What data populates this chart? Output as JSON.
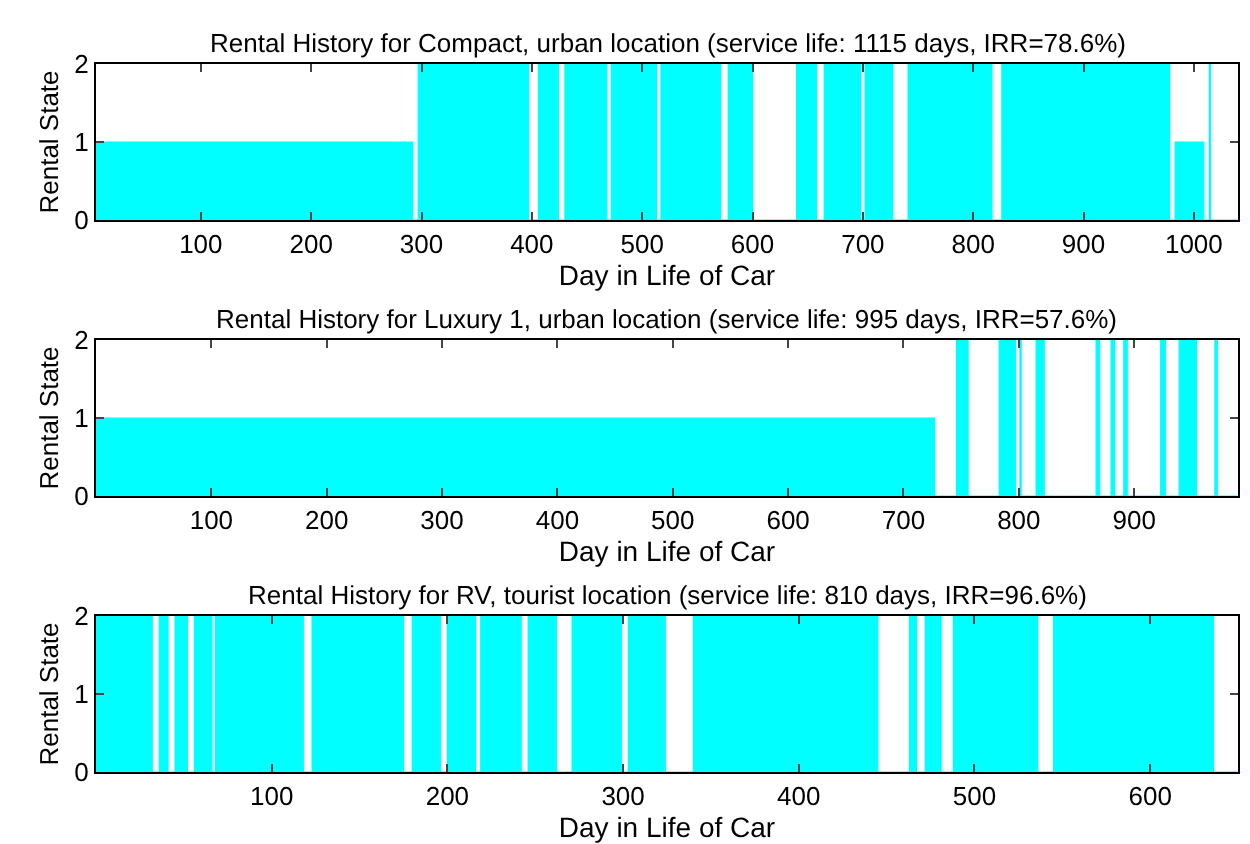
{
  "chart_data": [
    {
      "type": "area",
      "title": "Rental History for Compact, urban location (service life: 1115 days, IRR=78.6%)",
      "xlabel": "Day in Life of Car",
      "ylabel": "Rental State",
      "xlim": [
        5,
        1040
      ],
      "xticks": [
        100,
        200,
        300,
        400,
        500,
        600,
        700,
        800,
        900,
        1000
      ],
      "ylim": [
        0,
        2
      ],
      "yticks": [
        0,
        1,
        2
      ],
      "series": [
        {
          "color": "#00ffff",
          "x": [
            5,
            292,
            292,
            297,
            297,
            397,
            397,
            406,
            406,
            424,
            424,
            430,
            430,
            468,
            468,
            472,
            472,
            513,
            513,
            517,
            517,
            571,
            571,
            578,
            578,
            600,
            600,
            640,
            640,
            658,
            658,
            665,
            665,
            698,
            698,
            702,
            702,
            727,
            727,
            741,
            741,
            817,
            817,
            826,
            826,
            978,
            978,
            983,
            983,
            1009,
            1009,
            1014,
            1014,
            1015,
            1015,
            1040
          ],
          "values": [
            1,
            1,
            0,
            0,
            2,
            2,
            0,
            0,
            2,
            2,
            0,
            0,
            2,
            2,
            0,
            0,
            2,
            2,
            0,
            0,
            2,
            2,
            0,
            0,
            2,
            2,
            0,
            0,
            2,
            2,
            0,
            0,
            2,
            2,
            0,
            0,
            2,
            2,
            0,
            0,
            2,
            2,
            0,
            0,
            2,
            2,
            0,
            0,
            1,
            1,
            0,
            0,
            2,
            2,
            0,
            0
          ]
        }
      ]
    },
    {
      "type": "area",
      "title": "Rental History for Luxury 1, urban location (service life: 995 days, IRR=57.6%)",
      "xlabel": "Day in Life of Car",
      "ylabel": "Rental State",
      "xlim": [
        0,
        990
      ],
      "xticks": [
        100,
        200,
        300,
        400,
        500,
        600,
        700,
        800,
        900
      ],
      "ylim": [
        0,
        2
      ],
      "yticks": [
        0,
        1,
        2
      ],
      "series": [
        {
          "color": "#00ffff",
          "x": [
            0,
            727,
            727,
            746,
            746,
            756,
            756,
            783,
            783,
            797,
            797,
            801,
            801,
            802,
            802,
            815,
            815,
            822,
            822,
            867,
            867,
            870,
            870,
            880,
            880,
            883,
            883,
            891,
            891,
            894,
            894,
            923,
            923,
            927,
            927,
            939,
            939,
            954,
            954,
            970,
            970,
            972,
            972,
            990
          ],
          "values": [
            1,
            1,
            0,
            0,
            2,
            2,
            0,
            0,
            2,
            2,
            0,
            0,
            2,
            2,
            0,
            0,
            2,
            2,
            0,
            0,
            2,
            2,
            0,
            0,
            2,
            2,
            0,
            0,
            2,
            2,
            0,
            0,
            2,
            2,
            0,
            0,
            2,
            2,
            0,
            0,
            2,
            2,
            0,
            0
          ]
        }
      ]
    },
    {
      "type": "area",
      "title": "Rental History for RV, tourist location (service life: 810 days, IRR=96.6%)",
      "xlabel": "Day in Life of Car",
      "ylabel": "Rental State",
      "xlim": [
        0,
        650
      ],
      "xticks": [
        100,
        200,
        300,
        400,
        500,
        600
      ],
      "ylim": [
        0,
        2
      ],
      "yticks": [
        0,
        1,
        2
      ],
      "series": [
        {
          "color": "#00ffff",
          "x": [
            0,
            32,
            32,
            36,
            36,
            41,
            41,
            45,
            45,
            52,
            52,
            56,
            56,
            66,
            66,
            68,
            68,
            118,
            118,
            123,
            123,
            175,
            175,
            180,
            180,
            196,
            196,
            200,
            200,
            216,
            216,
            219,
            219,
            242,
            242,
            246,
            246,
            262,
            262,
            271,
            271,
            299,
            299,
            303,
            303,
            324,
            324,
            340,
            340,
            445,
            445,
            463,
            463,
            467,
            467,
            472,
            472,
            481,
            481,
            488,
            488,
            536,
            536,
            545,
            545,
            636,
            636,
            650
          ],
          "values": [
            2,
            2,
            0,
            0,
            2,
            2,
            0,
            0,
            2,
            2,
            0,
            0,
            2,
            2,
            0,
            0,
            2,
            2,
            0,
            0,
            2,
            2,
            0,
            0,
            2,
            2,
            0,
            0,
            2,
            2,
            0,
            0,
            2,
            2,
            0,
            0,
            2,
            2,
            0,
            0,
            2,
            2,
            0,
            0,
            2,
            2,
            0,
            0,
            2,
            2,
            0,
            0,
            2,
            2,
            0,
            0,
            2,
            2,
            0,
            0,
            2,
            2,
            0,
            0,
            2,
            2,
            0,
            0
          ]
        }
      ]
    }
  ]
}
